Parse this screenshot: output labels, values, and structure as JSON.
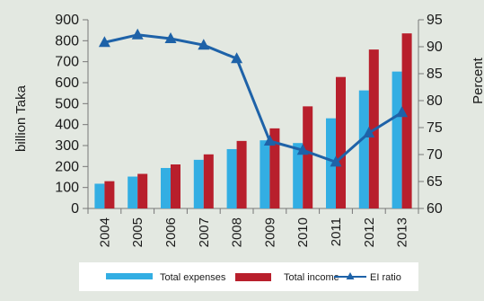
{
  "chart_data": {
    "type": "bar",
    "categories": [
      "2004",
      "2005",
      "2006",
      "2007",
      "2008",
      "2009",
      "2010",
      "2011",
      "2012",
      "2013"
    ],
    "series": [
      {
        "name": "Total expenses",
        "type": "bar",
        "axis": "left",
        "color": "#33aee3",
        "values": [
          118,
          152,
          193,
          232,
          283,
          325,
          312,
          430,
          563,
          653
        ]
      },
      {
        "name": "Total income",
        "type": "bar",
        "axis": "left",
        "color": "#b81f2c",
        "values": [
          130,
          165,
          210,
          258,
          322,
          382,
          487,
          627,
          758,
          835
        ]
      },
      {
        "name": "EI ratio",
        "type": "line",
        "axis": "right",
        "color": "#1e62a8",
        "marker": "triangle",
        "values": [
          90.8,
          92.2,
          91.5,
          90.3,
          87.8,
          72.5,
          70.8,
          68.6,
          74.0,
          77.8
        ]
      }
    ],
    "ylabel": "billion Taka",
    "y2label": "Percent",
    "ylim": [
      0,
      900
    ],
    "y2lim": [
      60,
      95
    ],
    "yticks": [
      "0",
      "100",
      "200",
      "300",
      "400",
      "500",
      "600",
      "700",
      "800",
      "900"
    ],
    "y2ticks": [
      "60",
      "65",
      "70",
      "75",
      "80",
      "85",
      "90",
      "95"
    ],
    "grid": false,
    "legend_position": "bottom",
    "colors": {
      "background": "#e3e8e1",
      "legend_background": "#ffffff",
      "axis": "#777777"
    }
  }
}
